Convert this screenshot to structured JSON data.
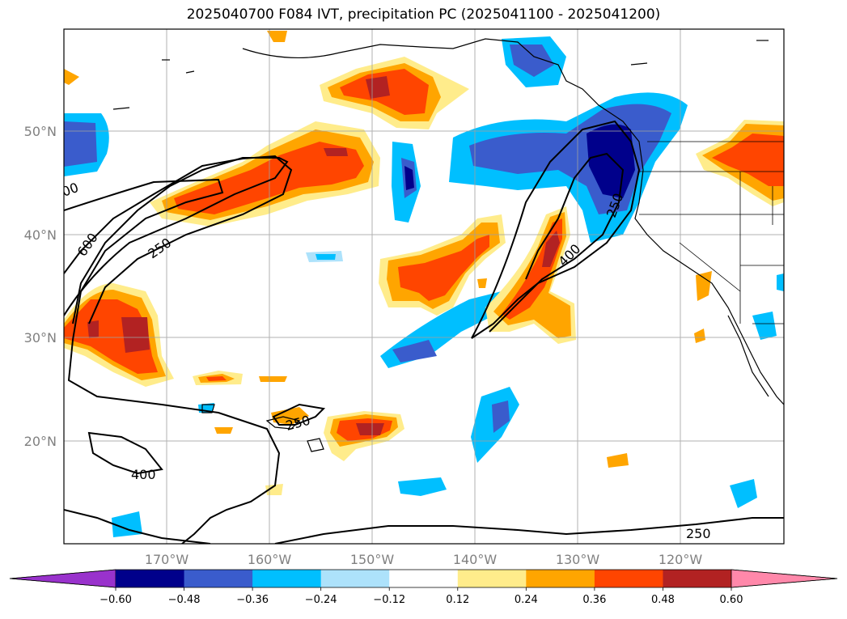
{
  "title": "2025040700 F084 IVT, precipitation PC (2025041100 - 2025041200)",
  "lat_labels": [
    "50°N",
    "40°N",
    "30°N",
    "20°N"
  ],
  "lon_labels": [
    "170°W",
    "160°W",
    "150°W",
    "140°W",
    "130°W",
    "120°W"
  ],
  "colorbar": {
    "colors": [
      "#9932cc",
      "#00008b",
      "#3a5ccc",
      "#00bfff",
      "#ade2fb",
      "#ffffff",
      "#ffec8b",
      "#ffa500",
      "#ff4500",
      "#b22222",
      "#ff88aa"
    ],
    "tick_labels": [
      "−0.60",
      "−0.48",
      "−0.36",
      "−0.24",
      "−0.12",
      "0.12",
      "0.24",
      "0.36",
      "0.48",
      "0.60"
    ]
  },
  "contour_labels": [
    "600",
    "250",
    "400",
    "250",
    "250",
    "400",
    "250",
    "00"
  ]
}
